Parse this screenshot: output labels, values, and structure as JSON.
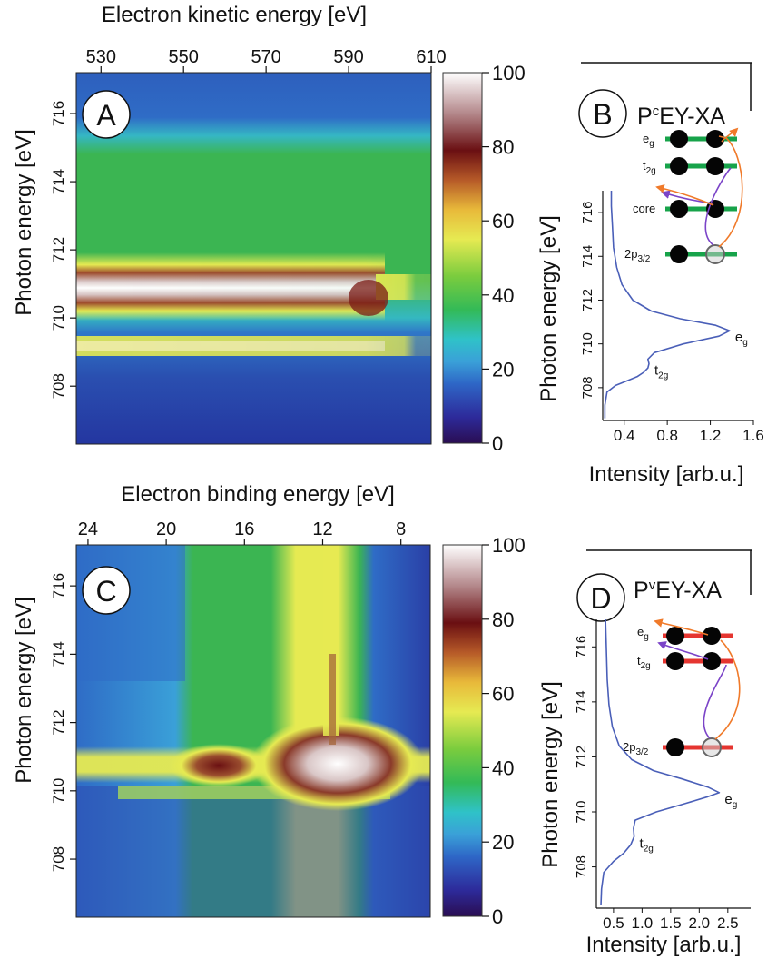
{
  "chart_data": [
    {
      "panel": "A",
      "type": "heatmap",
      "xlabel": "Electron kinetic energy [eV]",
      "ylabel": "Photon energy [eV]",
      "x_ticks": [
        "530",
        "550",
        "570",
        "590",
        "610"
      ],
      "y_ticks": [
        "716",
        "714",
        "712",
        "710",
        "708"
      ],
      "xlim": [
        524,
        610
      ],
      "ylim": [
        706.3,
        717.2
      ],
      "colorbar_ticks": [
        "100",
        "80",
        "60",
        "40",
        "20",
        "0"
      ],
      "colorbar_range": [
        0,
        100
      ],
      "features": [
        {
          "photon_energy": 710.5,
          "kinetic_energy_start": 524,
          "kinetic_energy_end": 597,
          "intensity": 100
        },
        {
          "photon_energy": 709.0,
          "kinetic_energy_start": 524,
          "kinetic_energy_end": 597,
          "intensity": 50
        }
      ]
    },
    {
      "panel": "B",
      "type": "line",
      "title": "P",
      "title_superscript": "c",
      "title_suffix": "EY-XA",
      "xlabel": "Intensity [arb.u.]",
      "ylabel": "Photon energy [eV]",
      "x_ticks": [
        "0.4",
        "0.8",
        "1.2",
        "1.6"
      ],
      "y_ticks": [
        "716",
        "714",
        "712",
        "710",
        "708"
      ],
      "xlim": [
        0.2,
        1.6
      ],
      "ylim": [
        706.5,
        717.0
      ],
      "x": [
        0.22,
        0.22,
        0.24,
        0.32,
        0.42,
        0.52,
        0.58,
        0.62,
        0.63,
        0.62,
        0.68,
        0.95,
        1.28,
        1.38,
        1.25,
        0.92,
        0.65,
        0.48,
        0.38,
        0.33,
        0.3,
        0.29,
        0.28,
        0.28
      ],
      "y": [
        706.6,
        707.2,
        707.8,
        708.1,
        708.3,
        708.5,
        708.7,
        708.9,
        709.1,
        709.3,
        709.6,
        710.0,
        710.35,
        710.6,
        710.85,
        711.15,
        711.5,
        712.0,
        712.7,
        713.5,
        714.4,
        715.4,
        716.3,
        717.0
      ],
      "peak_labels": [
        {
          "label": "e",
          "subscript": "g",
          "x": 1.38,
          "y": 710.6
        },
        {
          "label": "t",
          "subscript": "2g",
          "x": 0.63,
          "y": 709.1
        }
      ],
      "levels": [
        {
          "label": "e",
          "subscript": "g"
        },
        {
          "label": "t",
          "subscript": "2g"
        },
        {
          "label": "core",
          "subscript": ""
        },
        {
          "label": "2p",
          "subscript": "3/2"
        }
      ]
    },
    {
      "panel": "C",
      "type": "heatmap",
      "xlabel": "Electron binding energy [eV]",
      "ylabel": "Photon energy [eV]",
      "x_ticks": [
        "24",
        "20",
        "16",
        "12",
        "8"
      ],
      "y_ticks": [
        "716",
        "714",
        "712",
        "710",
        "708"
      ],
      "xlim": [
        24.6,
        6.5
      ],
      "ylim": [
        706.3,
        717.2
      ],
      "colorbar_ticks": [
        "100",
        "80",
        "60",
        "40",
        "20",
        "0"
      ],
      "colorbar_range": [
        0,
        100
      ],
      "features": [
        {
          "binding_energy": 11.1,
          "photon_energy": 710.5,
          "intensity": 100
        },
        {
          "binding_energy": 17.5,
          "photon_energy": 710.5,
          "intensity": 85
        }
      ]
    },
    {
      "panel": "D",
      "type": "line",
      "title": "P",
      "title_superscript": "v",
      "title_suffix": "EY-XA",
      "xlabel": "Intensity [arb.u.]",
      "ylabel": "Photon energy [eV]",
      "x_ticks": [
        "0.5",
        "1.0",
        "1.5",
        "2.0",
        "2.5"
      ],
      "y_ticks": [
        "716",
        "714",
        "712",
        "710",
        "708"
      ],
      "xlim": [
        0.2,
        2.9
      ],
      "ylim": [
        706.5,
        717.0
      ],
      "x": [
        0.28,
        0.29,
        0.33,
        0.5,
        0.68,
        0.8,
        0.86,
        0.85,
        0.88,
        1.25,
        1.75,
        2.15,
        2.35,
        2.15,
        1.7,
        1.2,
        0.82,
        0.6,
        0.48,
        0.42,
        0.39,
        0.38,
        0.37,
        0.36
      ],
      "y": [
        706.6,
        707.2,
        707.8,
        708.2,
        708.5,
        708.8,
        709.1,
        709.4,
        709.7,
        710.0,
        710.3,
        710.55,
        710.7,
        710.9,
        711.2,
        711.5,
        711.9,
        712.4,
        713.1,
        713.9,
        714.8,
        715.6,
        716.3,
        717.0
      ],
      "peak_labels": [
        {
          "label": "e",
          "subscript": "g",
          "x": 2.35,
          "y": 710.7
        },
        {
          "label": "t",
          "subscript": "2g",
          "x": 0.86,
          "y": 709.1
        }
      ],
      "levels": [
        {
          "label": "e",
          "subscript": "g"
        },
        {
          "label": "t",
          "subscript": "2g"
        },
        {
          "label": "2p",
          "subscript": "3/2"
        }
      ]
    }
  ],
  "colors": {
    "spectrum_line": "#4a5fb8",
    "level_green": "#17a34a",
    "level_red": "#e53530",
    "arrow_orange": "#f07a2a",
    "arrow_purple": "#7b44c8"
  }
}
